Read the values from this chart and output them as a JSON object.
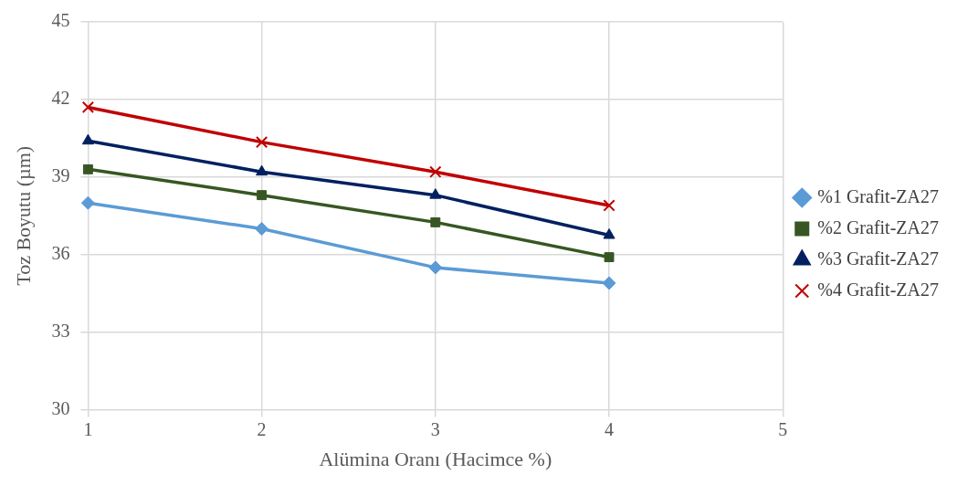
{
  "chart_data": {
    "type": "line",
    "xlabel": "Alümina Oranı (Hacimce %)",
    "ylabel": "Toz Boyutu (µm)",
    "x": [
      1,
      2,
      3,
      4
    ],
    "xlim": [
      1,
      5
    ],
    "xticks": [
      1,
      2,
      3,
      4,
      5
    ],
    "ylim": [
      30,
      45
    ],
    "yticks": [
      30,
      33,
      36,
      39,
      42,
      45
    ],
    "grid": true,
    "legend": "right",
    "line_style": "solid",
    "series": [
      {
        "name": "%1 Grafit-ZA27",
        "color": "#5b9bd5",
        "marker": "diamond",
        "values": [
          38.0,
          37.0,
          35.5,
          34.9
        ]
      },
      {
        "name": "%2 Grafit-ZA27",
        "color": "#375623",
        "marker": "square",
        "values": [
          39.3,
          38.3,
          37.25,
          35.9
        ]
      },
      {
        "name": "%3 Grafit-ZA27",
        "color": "#002060",
        "marker": "triangle",
        "values": [
          40.4,
          39.2,
          38.3,
          36.75
        ]
      },
      {
        "name": "%4 Grafit-ZA27",
        "color": "#c00000",
        "marker": "cross",
        "values": [
          41.7,
          40.35,
          39.2,
          37.9
        ]
      }
    ]
  }
}
